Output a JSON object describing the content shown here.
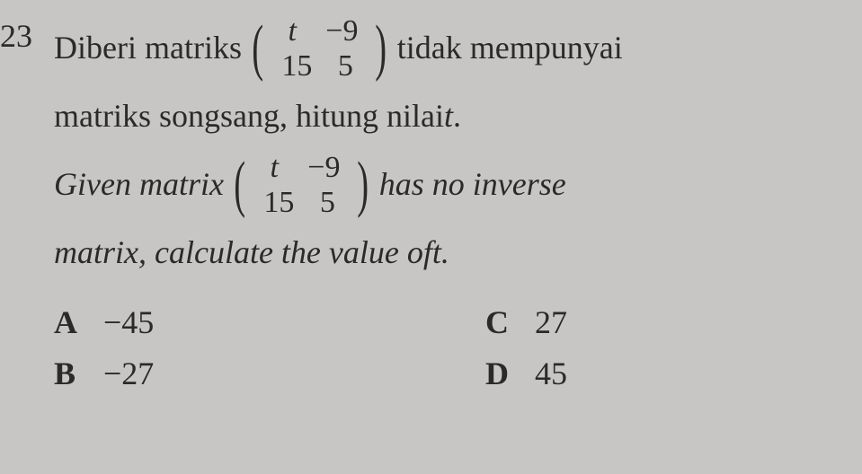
{
  "question": {
    "number": "23",
    "line1_before": "Diberi matriks",
    "line1_after": "tidak mempunyai",
    "line2": "matriks songsang, hitung nilai ",
    "line2_var": "t",
    "line2_end": ".",
    "line3_before": "Given matrix",
    "line3_after": "has no inverse",
    "line4": "matrix, calculate the value of ",
    "line4_var": "t",
    "line4_end": ".",
    "matrix": {
      "r1c1": "t",
      "r1c2": "−9",
      "r2c1": "15",
      "r2c2": "5"
    },
    "options": {
      "A": "−45",
      "B": "−27",
      "C": "27",
      "D": "45"
    }
  },
  "styling": {
    "background_color": "#c8c6c4",
    "text_color": "#2a2a2a",
    "font_family": "Times New Roman",
    "body_fontsize": 36,
    "matrix_fontsize": 34
  }
}
